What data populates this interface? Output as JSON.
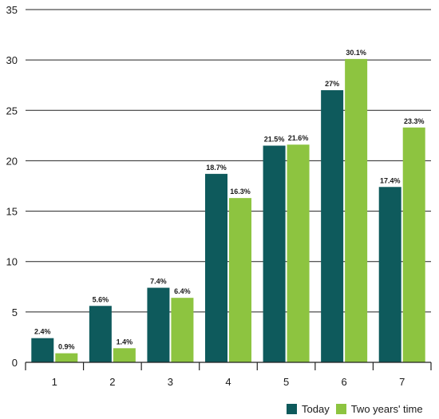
{
  "chart_data": {
    "type": "bar",
    "categories": [
      "1",
      "2",
      "3",
      "4",
      "5",
      "6",
      "7"
    ],
    "series": [
      {
        "name": "Today",
        "color": "#0e5a5c",
        "values": [
          2.4,
          5.6,
          7.4,
          18.7,
          21.5,
          27,
          17.4
        ],
        "labels": [
          "2.4%",
          "5.6%",
          "7.4%",
          "18.7%",
          "21.5%",
          "27%",
          "17.4%"
        ]
      },
      {
        "name": "Two years' time",
        "color": "#8dc440",
        "values": [
          0.9,
          1.4,
          6.4,
          16.3,
          21.6,
          30.1,
          23.3
        ],
        "labels": [
          "0.9%",
          "1.4%",
          "6.4%",
          "16.3%",
          "21.6%",
          "30.1%",
          "23.3%"
        ]
      }
    ],
    "ylim": [
      0,
      35
    ],
    "yticks": [
      "0",
      "5",
      "10",
      "15",
      "20",
      "25",
      "30",
      "35"
    ],
    "title": "",
    "xlabel": "",
    "ylabel": "",
    "grid": true,
    "legend_position": "bottom-right"
  }
}
